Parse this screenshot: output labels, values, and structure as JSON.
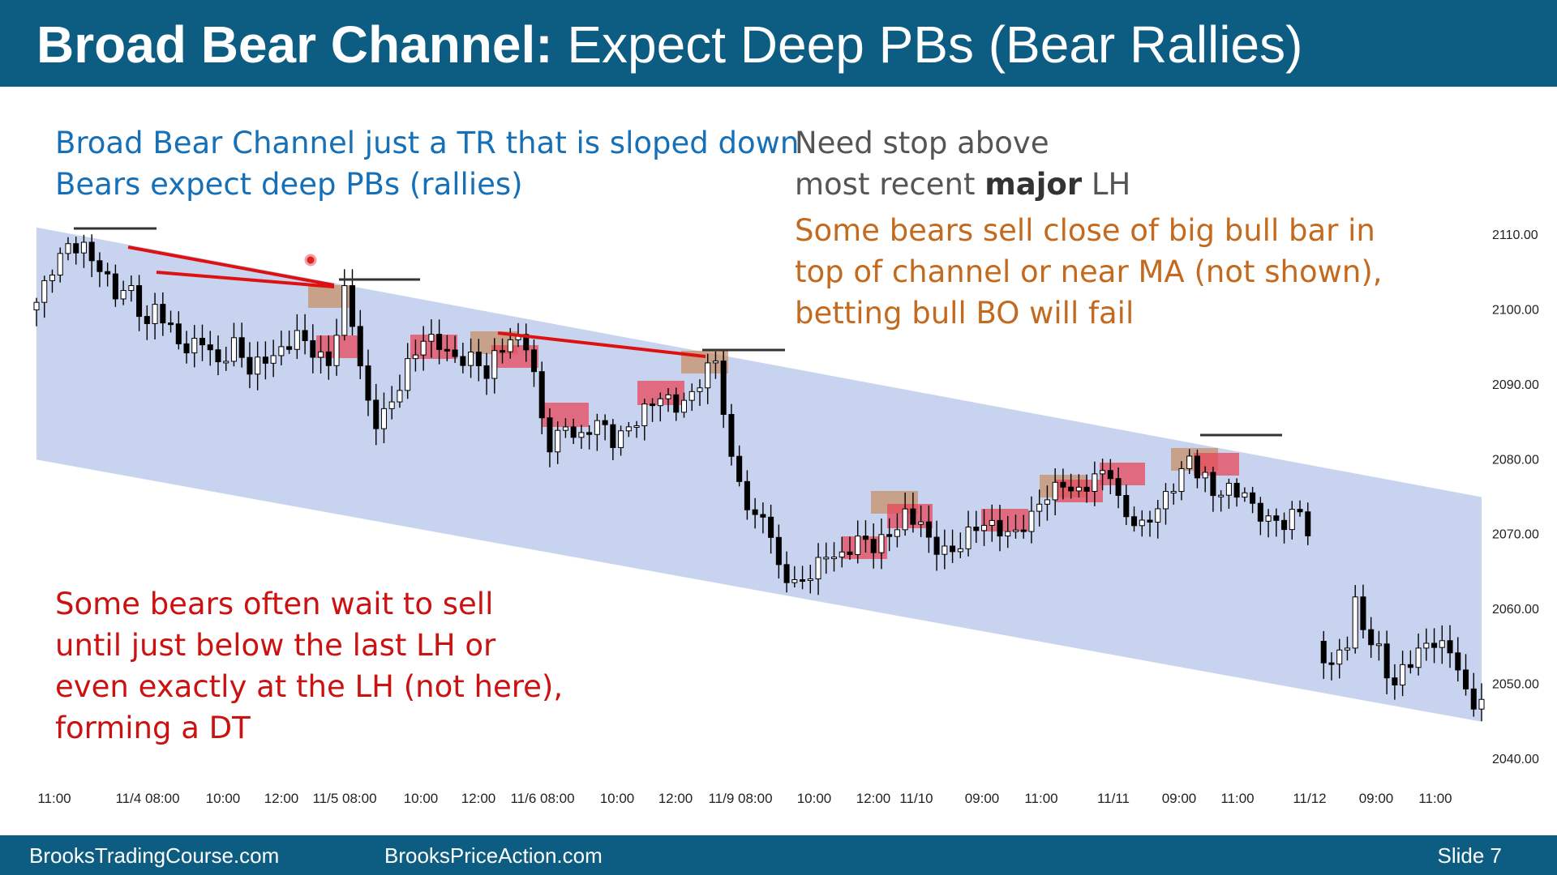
{
  "slide": {
    "title_bold": "Broad Bear Channel:",
    "title_rest": " Expect Deep PBs (Bear Rallies)",
    "footer_left": "BrooksTradingCourse.com",
    "footer_mid": "BrooksPriceAction.com",
    "footer_right": "Slide  7"
  },
  "notes": {
    "blue": [
      "Broad Bear Channel just a TR that is sloped down",
      "Bears expect deep PBs (rallies)"
    ],
    "gray_line1": "Need stop above",
    "gray_line2_pre": "most recent ",
    "gray_line2_bold": "major",
    "gray_line2_post": " LH",
    "orange": [
      "Some bears sell close of big bull bar in",
      "top of channel or near MA (not shown),",
      "betting bull BO will fail"
    ],
    "red": [
      "Some bears often wait to sell",
      "until just below the last LH or",
      "even exactly at the LH (not here),",
      "forming a DT"
    ]
  },
  "colors": {
    "header": "#0d5d82",
    "channel": "#c8d4ef",
    "bear_box": "#e8475a",
    "signal_box": "#c8906a",
    "trendline": "#dd1111",
    "blue_text": "#1570b8",
    "orange_text": "#c46a1e",
    "red_text": "#cc1111"
  },
  "chart_data": {
    "type": "candlestick",
    "ylim": [
      2040,
      2110
    ],
    "y_ticks": [
      "2110.00",
      "2100.00",
      "2090.00",
      "2080.00",
      "2070.00",
      "2060.00",
      "2050.00",
      "2040.00"
    ],
    "x_ticks": [
      "11:00",
      "11/4 08:00",
      "10:00",
      "12:00",
      "11/5 08:00",
      "10:00",
      "12:00",
      "11/6 08:00",
      "10:00",
      "12:00",
      "11/9 08:00",
      "10:00",
      "12:00",
      "11/10",
      "09:00",
      "11:00",
      "11/11",
      "09:00",
      "11:00",
      "11/12",
      "09:00",
      "11:00"
    ],
    "close_path": [
      [
        0,
        2101
      ],
      [
        2,
        2106
      ],
      [
        4,
        2109
      ],
      [
        6,
        2108
      ],
      [
        8,
        2105
      ],
      [
        10,
        2102
      ],
      [
        12,
        2103
      ],
      [
        14,
        2098
      ],
      [
        15,
        2101
      ],
      [
        17,
        2097
      ],
      [
        19,
        2094
      ],
      [
        21,
        2096
      ],
      [
        23,
        2093
      ],
      [
        25,
        2096
      ],
      [
        27,
        2092
      ],
      [
        29,
        2093
      ],
      [
        31,
        2094
      ],
      [
        33,
        2097
      ],
      [
        35,
        2095
      ],
      [
        37,
        2093
      ],
      [
        38,
        2097
      ],
      [
        39,
        2102
      ],
      [
        40,
        2098
      ],
      [
        41,
        2092
      ],
      [
        42,
        2087
      ],
      [
        43,
        2085
      ],
      [
        45,
        2088
      ],
      [
        47,
        2093
      ],
      [
        49,
        2096
      ],
      [
        51,
        2095
      ],
      [
        53,
        2093
      ],
      [
        55,
        2094
      ],
      [
        57,
        2092
      ],
      [
        58,
        2094
      ],
      [
        60,
        2096
      ],
      [
        62,
        2095
      ],
      [
        63,
        2091
      ],
      [
        64,
        2085
      ],
      [
        65,
        2082
      ],
      [
        67,
        2085
      ],
      [
        69,
        2083
      ],
      [
        71,
        2085
      ],
      [
        73,
        2082
      ],
      [
        75,
        2084
      ],
      [
        77,
        2087
      ],
      [
        79,
        2089
      ],
      [
        81,
        2087
      ],
      [
        83,
        2088
      ],
      [
        85,
        2092
      ],
      [
        86,
        2093
      ],
      [
        87,
        2087
      ],
      [
        88,
        2080
      ],
      [
        89,
        2078
      ],
      [
        90,
        2074
      ],
      [
        91,
        2072
      ],
      [
        92,
        2073
      ],
      [
        93,
        2069
      ],
      [
        94,
        2065
      ],
      [
        96,
        2063
      ],
      [
        98,
        2065
      ],
      [
        100,
        2068
      ],
      [
        102,
        2067
      ],
      [
        104,
        2069
      ],
      [
        106,
        2068
      ],
      [
        108,
        2070
      ],
      [
        110,
        2073
      ],
      [
        112,
        2072
      ],
      [
        113,
        2069
      ],
      [
        114,
        2068
      ],
      [
        116,
        2067
      ],
      [
        118,
        2070
      ],
      [
        120,
        2072
      ],
      [
        122,
        2071
      ],
      [
        124,
        2070
      ],
      [
        126,
        2072
      ],
      [
        128,
        2075
      ],
      [
        130,
        2077
      ],
      [
        132,
        2076
      ],
      [
        134,
        2078
      ],
      [
        136,
        2078
      ],
      [
        137,
        2074
      ],
      [
        138,
        2072
      ],
      [
        140,
        2071
      ],
      [
        142,
        2074
      ],
      [
        144,
        2077
      ],
      [
        146,
        2080
      ],
      [
        147,
        2078
      ],
      [
        148,
        2077
      ],
      [
        149,
        2075
      ],
      [
        151,
        2076
      ],
      [
        153,
        2076
      ],
      [
        154,
        2074
      ],
      [
        156,
        2072
      ],
      [
        158,
        2071
      ],
      [
        160,
        2073
      ],
      [
        161,
        2070
      ],
      [
        162,
        2055
      ],
      [
        164,
        2053
      ],
      [
        166,
        2056
      ],
      [
        167,
        2061
      ],
      [
        168,
        2057
      ],
      [
        170,
        2054
      ],
      [
        171,
        2051
      ],
      [
        172,
        2050
      ],
      [
        173,
        2052
      ],
      [
        175,
        2055
      ],
      [
        177,
        2056
      ],
      [
        179,
        2054
      ],
      [
        180,
        2052
      ],
      [
        181,
        2048
      ],
      [
        182,
        2047
      ],
      [
        183,
        2048
      ]
    ],
    "channel_top": [
      [
        2111,
        2075
      ],
      [
        0,
        183
      ]
    ],
    "channel_bottom": [
      [
        2080,
        2045
      ],
      [
        0,
        183
      ]
    ]
  }
}
